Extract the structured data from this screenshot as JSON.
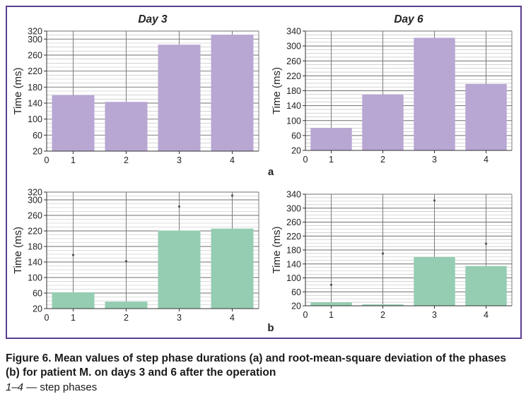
{
  "caption": {
    "figure_title": "Figure 6. Mean values of step phase durations (a) and root-mean-square deviation of the phases (b) for patient M. on days 3 and 6 after the operation",
    "legend_phases": "1–4",
    "legend_text": " — step phases"
  },
  "panel_labels": {
    "a": "a",
    "b": "b"
  },
  "colors": {
    "row_a_bars": "#b8a6d3",
    "row_b_bars": "#94cdb2",
    "frame": "#5b3f8f"
  },
  "chart_data": [
    {
      "id": "a-day3",
      "type": "bar",
      "title": "Day 3",
      "ylabel": "Time (ms)",
      "xlabel": "",
      "categories": [
        "1",
        "2",
        "3",
        "4"
      ],
      "values": [
        160,
        143,
        286,
        311
      ],
      "ylim": [
        20,
        320
      ],
      "yticks": [
        20,
        60,
        100,
        140,
        180,
        220,
        260,
        300,
        320
      ],
      "x_origin_label": "0",
      "grid": true,
      "legend": "none"
    },
    {
      "id": "a-day6",
      "type": "bar",
      "title": "Day 6",
      "ylabel": "Time (ms)",
      "xlabel": "",
      "categories": [
        "1",
        "2",
        "3",
        "4"
      ],
      "values": [
        80,
        170,
        322,
        198
      ],
      "ylim": [
        20,
        340
      ],
      "yticks": [
        20,
        60,
        100,
        140,
        180,
        220,
        260,
        300,
        340
      ],
      "x_origin_label": "0",
      "grid": true,
      "legend": "none"
    },
    {
      "id": "b-day3",
      "type": "bar",
      "title": "",
      "ylabel": "Time (ms)",
      "xlabel": "",
      "categories": [
        "1",
        "2",
        "3",
        "4"
      ],
      "values": [
        62,
        38,
        221,
        226
      ],
      "markers": [
        158,
        142,
        283,
        311
      ],
      "ylim": [
        20,
        320
      ],
      "yticks": [
        20,
        60,
        100,
        140,
        180,
        220,
        260,
        300,
        320
      ],
      "x_origin_label": "0",
      "grid": true,
      "legend": "none"
    },
    {
      "id": "b-day6",
      "type": "bar",
      "title": "",
      "ylabel": "Time (ms)",
      "xlabel": "",
      "categories": [
        "1",
        "2",
        "3",
        "4"
      ],
      "values": [
        30,
        24,
        160,
        134
      ],
      "markers": [
        80,
        170,
        322,
        198
      ],
      "ylim": [
        20,
        340
      ],
      "yticks": [
        20,
        60,
        100,
        140,
        180,
        220,
        260,
        300,
        340
      ],
      "x_origin_label": "0",
      "grid": true,
      "legend": "none"
    }
  ]
}
